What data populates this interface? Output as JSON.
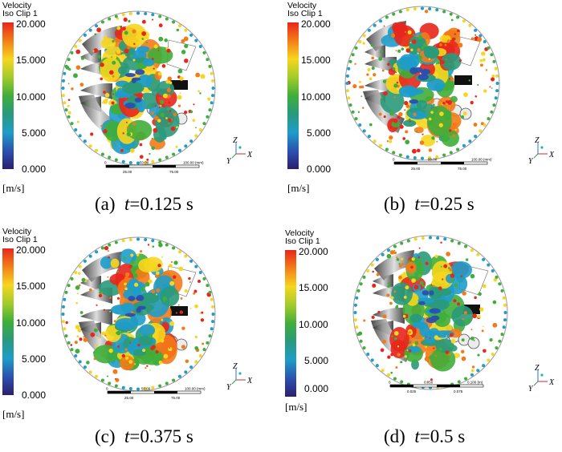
{
  "panels": [
    {
      "id": "a",
      "title_line1": "Velocity",
      "title_line2": "Iso Clip 1",
      "ticks": [
        "20.000",
        "15.000",
        "10.000",
        "5.000",
        "0.000"
      ],
      "unit": "[m/s]",
      "caption_label": "(a)",
      "caption_var": "t",
      "caption_value": "=0.125 s",
      "scale_top": [
        "0",
        "50.00",
        "100.00 (mm)"
      ],
      "scale_bottom": [
        "25.00",
        "75.00"
      ]
    },
    {
      "id": "b",
      "title_line1": "Velocity",
      "title_line2": "Iso Clip 1",
      "ticks": [
        "20.000",
        "15.000",
        "10.000",
        "5.000",
        "0.000"
      ],
      "unit": "[m/s]",
      "caption_label": "(b)",
      "caption_var": "t",
      "caption_value": "=0.25 s",
      "scale_top": [
        "0",
        "50.00",
        "100.00 (mm)"
      ],
      "scale_bottom": [
        "25.00",
        "75.00"
      ]
    },
    {
      "id": "c",
      "title_line1": "Velocity",
      "title_line2": "Iso Clip 1",
      "ticks": [
        "20.000",
        "15.000",
        "10.000",
        "5.000",
        "0.000"
      ],
      "unit": "[m/s]",
      "caption_label": "(c)",
      "caption_var": "t",
      "caption_value": "=0.375 s",
      "scale_top": [
        "0",
        "50.00",
        "100.00 (mm)"
      ],
      "scale_bottom": [
        "25.00",
        "75.00"
      ]
    },
    {
      "id": "d",
      "title_line1": "Velocity",
      "title_line2": "Iso Clip 1",
      "ticks": [
        "20.000",
        "15.000",
        "10.000",
        "5.000",
        "0.000"
      ],
      "unit": "[m/s]",
      "caption_label": "(d)",
      "caption_var": "t",
      "caption_value": "=0.5 s",
      "scale_top": [
        "0",
        "0.050",
        "0.100 (m)"
      ],
      "scale_bottom": [
        "0.025",
        "0.075"
      ]
    }
  ],
  "axes": {
    "z": "Z",
    "y": "Y",
    "x": "X"
  },
  "colors": {
    "red": "#e8261c",
    "orange": "#f47a18",
    "yellow": "#f6d61e",
    "green": "#3fae3a",
    "teal": "#2a9a7a",
    "blue": "#1f9cc9",
    "navy": "#2b1f6e"
  }
}
